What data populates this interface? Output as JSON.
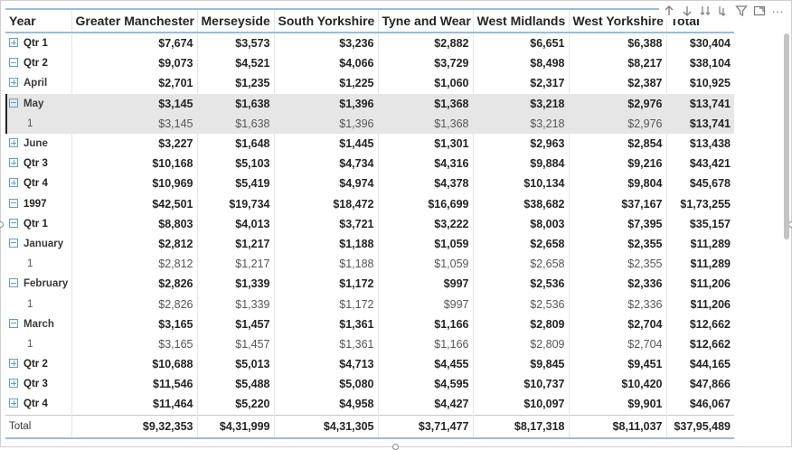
{
  "toolbar": {
    "icons": [
      "drill-up-icon",
      "drill-down-icon",
      "next-level-icon",
      "expand-all-icon",
      "filter-icon",
      "focus-mode-icon",
      "more-options-icon"
    ],
    "more_label": "···"
  },
  "table": {
    "columns": [
      "Year",
      "Greater Manchester",
      "Merseyside",
      "South Yorkshire",
      "Tyne and Wear",
      "West Midlands",
      "West Yorkshire",
      "Total"
    ],
    "rows": [
      {
        "kind": "qtr",
        "expander": "plus",
        "label": "Qtr 1",
        "values": [
          "$7,674",
          "$3,573",
          "$3,236",
          "$2,882",
          "$6,651",
          "$6,388",
          "$30,404"
        ]
      },
      {
        "kind": "qtr-open",
        "expander": "minus",
        "label": "Qtr 2",
        "values": [
          "$9,073",
          "$4,521",
          "$4,066",
          "$3,729",
          "$8,498",
          "$8,217",
          "$38,104"
        ]
      },
      {
        "kind": "month",
        "expander": "plus",
        "label": "April",
        "values": [
          "$2,701",
          "$1,235",
          "$1,225",
          "$1,060",
          "$2,317",
          "$2,387",
          "$10,925"
        ]
      },
      {
        "kind": "month-selected",
        "expander": "minus",
        "label": "May",
        "values": [
          "$3,145",
          "$1,638",
          "$1,396",
          "$1,368",
          "$3,218",
          "$2,976",
          "$13,741"
        ]
      },
      {
        "kind": "leaf-selected",
        "expander": "",
        "label": "1",
        "values": [
          "$3,145",
          "$1,638",
          "$1,396",
          "$1,368",
          "$3,218",
          "$2,976",
          "$13,741"
        ]
      },
      {
        "kind": "month",
        "expander": "plus",
        "label": "June",
        "values": [
          "$3,227",
          "$1,648",
          "$1,445",
          "$1,301",
          "$2,963",
          "$2,854",
          "$13,438"
        ]
      },
      {
        "kind": "qtr",
        "expander": "plus",
        "label": "Qtr 3",
        "values": [
          "$10,168",
          "$5,103",
          "$4,734",
          "$4,316",
          "$9,884",
          "$9,216",
          "$43,421"
        ]
      },
      {
        "kind": "qtr",
        "expander": "plus",
        "label": "Qtr 4",
        "values": [
          "$10,969",
          "$5,419",
          "$4,974",
          "$4,378",
          "$10,134",
          "$9,804",
          "$45,678"
        ]
      },
      {
        "kind": "year",
        "expander": "minus",
        "label": "1997",
        "values": [
          "$42,501",
          "$19,734",
          "$18,472",
          "$16,699",
          "$38,682",
          "$37,167",
          "$1,73,255"
        ]
      },
      {
        "kind": "qtr",
        "expander": "minus",
        "label": "Qtr 1",
        "values": [
          "$8,803",
          "$4,013",
          "$3,721",
          "$3,222",
          "$8,003",
          "$7,395",
          "$35,157"
        ]
      },
      {
        "kind": "month",
        "expander": "minus",
        "label": "January",
        "values": [
          "$2,812",
          "$1,217",
          "$1,188",
          "$1,059",
          "$2,658",
          "$2,355",
          "$11,289"
        ]
      },
      {
        "kind": "leaf",
        "expander": "",
        "label": "1",
        "values": [
          "$2,812",
          "$1,217",
          "$1,188",
          "$1,059",
          "$2,658",
          "$2,355",
          "$11,289"
        ]
      },
      {
        "kind": "month",
        "expander": "minus",
        "label": "February",
        "values": [
          "$2,826",
          "$1,339",
          "$1,172",
          "$997",
          "$2,536",
          "$2,336",
          "$11,206"
        ]
      },
      {
        "kind": "leaf",
        "expander": "",
        "label": "1",
        "values": [
          "$2,826",
          "$1,339",
          "$1,172",
          "$997",
          "$2,536",
          "$2,336",
          "$11,206"
        ]
      },
      {
        "kind": "month",
        "expander": "minus",
        "label": "March",
        "values": [
          "$3,165",
          "$1,457",
          "$1,361",
          "$1,166",
          "$2,809",
          "$2,704",
          "$12,662"
        ]
      },
      {
        "kind": "leaf",
        "expander": "",
        "label": "1",
        "values": [
          "$3,165",
          "$1,457",
          "$1,361",
          "$1,166",
          "$2,809",
          "$2,704",
          "$12,662"
        ]
      },
      {
        "kind": "qtr",
        "expander": "plus",
        "label": "Qtr 2",
        "values": [
          "$10,688",
          "$5,013",
          "$4,713",
          "$4,455",
          "$9,845",
          "$9,451",
          "$44,165"
        ]
      },
      {
        "kind": "qtr",
        "expander": "plus",
        "label": "Qtr 3",
        "values": [
          "$11,546",
          "$5,488",
          "$5,080",
          "$4,595",
          "$10,737",
          "$10,420",
          "$47,866"
        ]
      },
      {
        "kind": "qtr",
        "expander": "plus",
        "label": "Qtr 4",
        "values": [
          "$11,464",
          "$5,220",
          "$4,958",
          "$4,427",
          "$10,097",
          "$9,901",
          "$46,067"
        ]
      },
      {
        "kind": "total",
        "expander": "",
        "label": "Total",
        "values": [
          "$9,32,353",
          "$4,31,999",
          "$4,31,305",
          "$3,71,477",
          "$8,17,318",
          "$8,11,037",
          "$37,95,489"
        ]
      }
    ]
  },
  "colors": {
    "header_rule": "#9bbcd8",
    "expander": "#5f9ed2",
    "selected_row": "#e6e6e6"
  }
}
